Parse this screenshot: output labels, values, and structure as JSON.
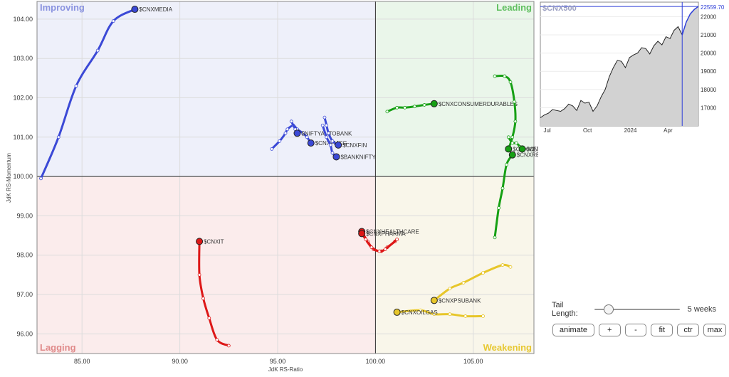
{
  "chart_data": {
    "type": "rrg",
    "xlabel": "JdK RS-Ratio",
    "ylabel": "JdK RS-Momentum",
    "xlim": [
      82.7,
      108.1
    ],
    "ylim": [
      95.5,
      104.45
    ],
    "xticks": [
      85.0,
      90.0,
      95.0,
      100.0,
      105.0
    ],
    "yticks": [
      96.0,
      97.0,
      98.0,
      99.0,
      100.0,
      101.0,
      102.0,
      103.0,
      104.0
    ],
    "tick_format": 2,
    "quadrants": {
      "improving": {
        "label": "Improving",
        "color": "#8a93e0"
      },
      "leading": {
        "label": "Leading",
        "color": "#5fbf5f"
      },
      "lagging": {
        "label": "Lagging",
        "color": "#e08a8a"
      },
      "weakening": {
        "label": "Weakening",
        "color": "#e7c832"
      }
    },
    "series": [
      {
        "name": "$CNXMEDIA",
        "color": "#3b49d6",
        "points": [
          [
            82.9,
            99.95
          ],
          [
            83.8,
            101.0
          ],
          [
            84.7,
            102.3
          ],
          [
            85.8,
            103.2
          ],
          [
            86.6,
            103.95
          ],
          [
            87.7,
            104.25
          ]
        ]
      },
      {
        "name": "$CNXFMCG",
        "color": "#3b49d6",
        "points": [
          [
            94.7,
            100.7
          ],
          [
            95.1,
            100.9
          ],
          [
            95.4,
            101.1
          ],
          [
            95.5,
            101.2
          ],
          [
            95.8,
            101.3
          ],
          [
            96.0,
            101.2
          ],
          [
            96.3,
            101.1
          ],
          [
            96.5,
            101.0
          ],
          [
            96.7,
            100.85
          ]
        ]
      },
      {
        "name": "$NIFTYAUTOBANK",
        "color": "#3b49d6",
        "points": [
          [
            95.7,
            101.4
          ],
          [
            95.9,
            101.2
          ],
          [
            96.0,
            101.1
          ]
        ]
      },
      {
        "name": "$CNXFIN",
        "color": "#3b49d6",
        "points": [
          [
            97.4,
            101.5
          ],
          [
            97.5,
            101.3
          ],
          [
            97.6,
            101.1
          ],
          [
            97.8,
            100.9
          ],
          [
            98.1,
            100.8
          ]
        ]
      },
      {
        "name": "$BANKNIFTY",
        "color": "#3b49d6",
        "points": [
          [
            97.3,
            101.3
          ],
          [
            97.5,
            101.0
          ],
          [
            97.7,
            100.8
          ],
          [
            97.8,
            100.6
          ],
          [
            98.0,
            100.5
          ]
        ]
      },
      {
        "name": "$CNXCONSUMERDURABLES",
        "color": "#16a014",
        "points": [
          [
            100.6,
            101.65
          ],
          [
            101.1,
            101.75
          ],
          [
            101.5,
            101.75
          ],
          [
            102.0,
            101.78
          ],
          [
            102.5,
            101.82
          ],
          [
            103.0,
            101.85
          ]
        ]
      },
      {
        "name": "$CNXREALTY",
        "color": "#16a014",
        "points": [
          [
            106.1,
            98.45
          ],
          [
            106.3,
            99.2
          ],
          [
            106.5,
            99.7
          ],
          [
            106.7,
            100.3
          ],
          [
            107.0,
            100.55
          ]
        ]
      },
      {
        "name": "$CNXMETAL",
        "color": "#16a014",
        "points": [
          [
            106.1,
            102.55
          ],
          [
            106.6,
            102.55
          ],
          [
            106.9,
            102.4
          ],
          [
            107.1,
            101.9
          ],
          [
            107.15,
            101.4
          ],
          [
            107.0,
            101.0
          ],
          [
            106.8,
            100.7
          ]
        ]
      },
      {
        "name": "$CNXAUTO",
        "color": "#16a014",
        "points": [
          [
            106.8,
            101.0
          ],
          [
            107.0,
            100.85
          ],
          [
            107.2,
            100.85
          ],
          [
            107.4,
            100.75
          ],
          [
            107.5,
            100.7
          ]
        ]
      },
      {
        "name": "$CNXHEALTHCARE",
        "color": "#dd1717",
        "points": [
          [
            101.0,
            98.35
          ],
          [
            100.6,
            98.2
          ],
          [
            100.3,
            98.1
          ],
          [
            99.9,
            98.15
          ],
          [
            99.6,
            98.35
          ],
          [
            99.3,
            98.6
          ]
        ]
      },
      {
        "name": "$CNXPHARMA",
        "color": "#dd1717",
        "points": [
          [
            101.1,
            98.4
          ],
          [
            100.5,
            98.15
          ],
          [
            100.2,
            98.1
          ],
          [
            99.8,
            98.2
          ],
          [
            99.5,
            98.4
          ],
          [
            99.3,
            98.55
          ]
        ]
      },
      {
        "name": "$CNXIT",
        "color": "#dd1717",
        "points": [
          [
            92.5,
            95.7
          ],
          [
            91.9,
            95.85
          ],
          [
            91.5,
            96.4
          ],
          [
            91.2,
            96.9
          ],
          [
            91.0,
            97.5
          ],
          [
            91.0,
            98.35
          ]
        ]
      },
      {
        "name": "$CNXPSUBANK",
        "color": "#e7c62a",
        "points": [
          [
            106.9,
            97.7
          ],
          [
            106.5,
            97.75
          ],
          [
            105.5,
            97.55
          ],
          [
            104.5,
            97.3
          ],
          [
            103.8,
            97.15
          ],
          [
            103.0,
            96.85
          ]
        ]
      },
      {
        "name": "$CNXOILGAS",
        "color": "#e7c62a",
        "points": [
          [
            105.5,
            96.45
          ],
          [
            104.6,
            96.45
          ],
          [
            103.8,
            96.5
          ],
          [
            103.0,
            96.5
          ],
          [
            102.3,
            96.6
          ],
          [
            101.1,
            96.55
          ]
        ]
      }
    ]
  },
  "benchmark_chart": {
    "title": "$CNX500",
    "last_value": "22559.70",
    "yticks": [
      "22000",
      "21000",
      "20000",
      "19000",
      "18000",
      "17000"
    ],
    "ytick_values": [
      22000,
      21000,
      20000,
      19000,
      18000,
      17000
    ],
    "ylim": [
      16000,
      22800
    ],
    "xticks": [
      "Jul",
      "Oct",
      "2024",
      "Apr"
    ],
    "xtick_positions": [
      0.02,
      0.27,
      0.53,
      0.78
    ],
    "values": [
      16450,
      16600,
      16700,
      16900,
      16850,
      16800,
      16950,
      17200,
      17100,
      16850,
      17400,
      17250,
      17300,
      16800,
      17100,
      17600,
      18000,
      18700,
      19200,
      19600,
      19550,
      19200,
      19750,
      19900,
      20000,
      20300,
      20250,
      19950,
      20400,
      20650,
      20450,
      20900,
      20800,
      21250,
      21450,
      21000,
      21700,
      22150,
      22400,
      22559.7
    ],
    "highlight_from": 35
  },
  "controls": {
    "tail_label": "Tail Length:",
    "tail_value": "5 weeks",
    "tail_fraction": 0.12,
    "buttons": [
      "animate",
      "+",
      "-",
      "fit",
      "ctr",
      "max"
    ]
  },
  "colors": {
    "improving_bg": "#eef0fa",
    "leading_bg": "#eaf6ea",
    "lagging_bg": "#fbecec",
    "weakening_bg": "#f9f6ea"
  }
}
